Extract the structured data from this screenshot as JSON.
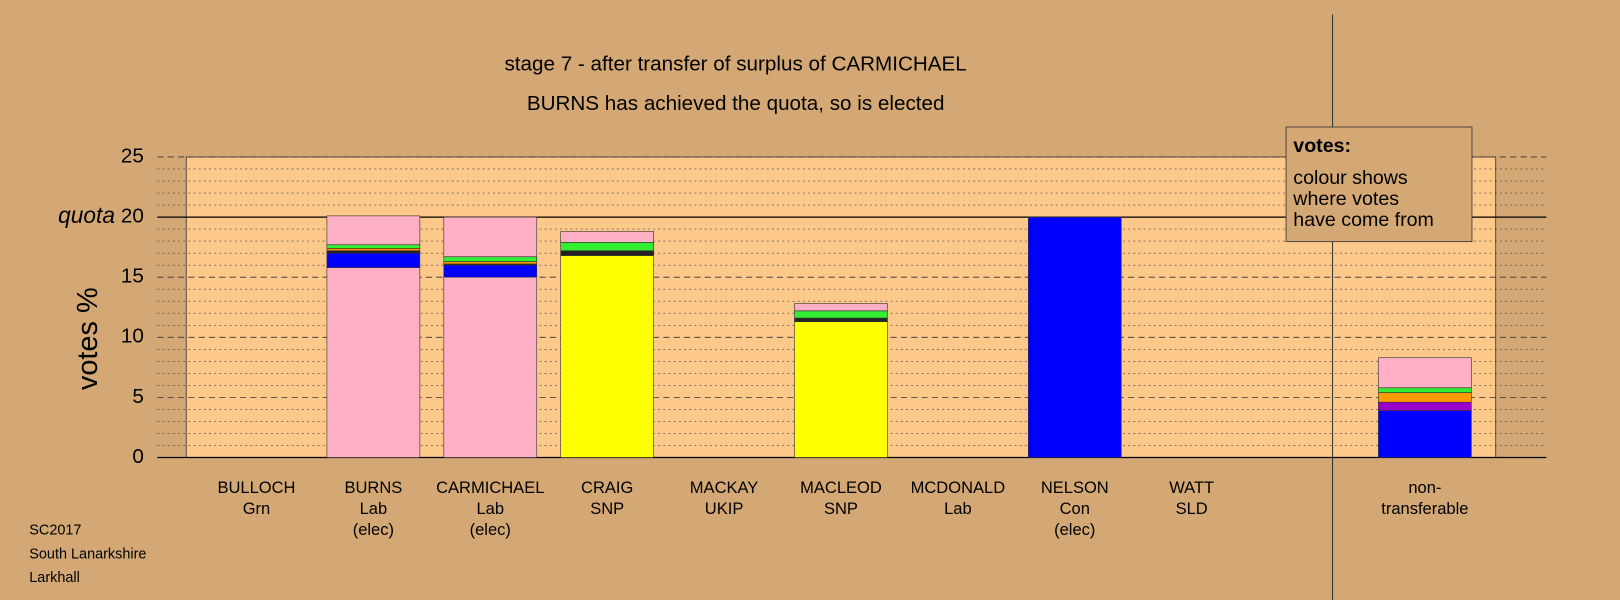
{
  "chart_data": {
    "type": "stacked-bar",
    "title": "stage 7 - after transfer of surplus of CARMICHAEL",
    "subtitle": "BURNS has achieved the quota, so is elected",
    "y_label": "votes %",
    "quota": {
      "value": 20,
      "label": "quota"
    },
    "categories": [
      [
        "BULLOCH",
        "Grn"
      ],
      [
        "BURNS",
        "Lab",
        "(elec)"
      ],
      [
        "CARMICHAEL",
        "Lab",
        "(elec)"
      ],
      [
        "CRAIG",
        "SNP"
      ],
      [
        "MACKAY",
        "UKIP"
      ],
      [
        "MACLEOD",
        "SNP"
      ],
      [
        "MCDONALD",
        "Lab"
      ],
      [
        "NELSON",
        "Con",
        "(elec)"
      ],
      [
        "WATT",
        "SLD"
      ],
      [
        "non-",
        "transferable"
      ]
    ],
    "series": [
      {
        "color": "#ffb0c4",
        "values": [
          0,
          15.8,
          15.0,
          0,
          0,
          0,
          0,
          0,
          0,
          0
        ]
      },
      {
        "color": "#ffff00",
        "values": [
          0,
          0,
          0,
          16.8,
          0,
          11.3,
          0,
          0,
          0,
          0
        ]
      },
      {
        "color": "#0000ff",
        "values": [
          0,
          1.2,
          1.0,
          0,
          0,
          0,
          0,
          20.0,
          0,
          3.9
        ]
      },
      {
        "color": "#9900cc",
        "values": [
          0,
          0,
          0,
          0,
          0,
          0,
          0,
          0,
          0,
          0.7
        ]
      },
      {
        "color": "#222222",
        "values": [
          0,
          0.2,
          0.1,
          0.4,
          0,
          0.3,
          0,
          0,
          0,
          0
        ]
      },
      {
        "color": "#ff9900",
        "values": [
          0,
          0.2,
          0.2,
          0,
          0,
          0,
          0,
          0,
          0,
          0.8
        ]
      },
      {
        "color": "#33ee33",
        "values": [
          0,
          0.3,
          0.4,
          0.7,
          0,
          0.6,
          0,
          0,
          0,
          0.4
        ]
      },
      {
        "color": "#ffb0c4",
        "values": [
          0,
          2.4,
          3.3,
          0.9,
          0,
          0.6,
          0,
          0,
          0,
          2.5
        ]
      }
    ],
    "ylim": [
      0,
      25
    ],
    "yticks": [
      0,
      5,
      10,
      15,
      20,
      25
    ],
    "yminorticks": [
      1,
      2,
      3,
      4,
      6,
      7,
      8,
      9,
      11,
      12,
      13,
      14,
      16,
      17,
      18,
      19,
      21,
      22,
      23,
      24
    ],
    "grid": true,
    "legend": {
      "title": "votes:",
      "lines": [
        "colour shows",
        "where votes",
        "have come from"
      ]
    },
    "footer": [
      "SC2017",
      "South Lanarkshire",
      "Larkhall"
    ]
  }
}
